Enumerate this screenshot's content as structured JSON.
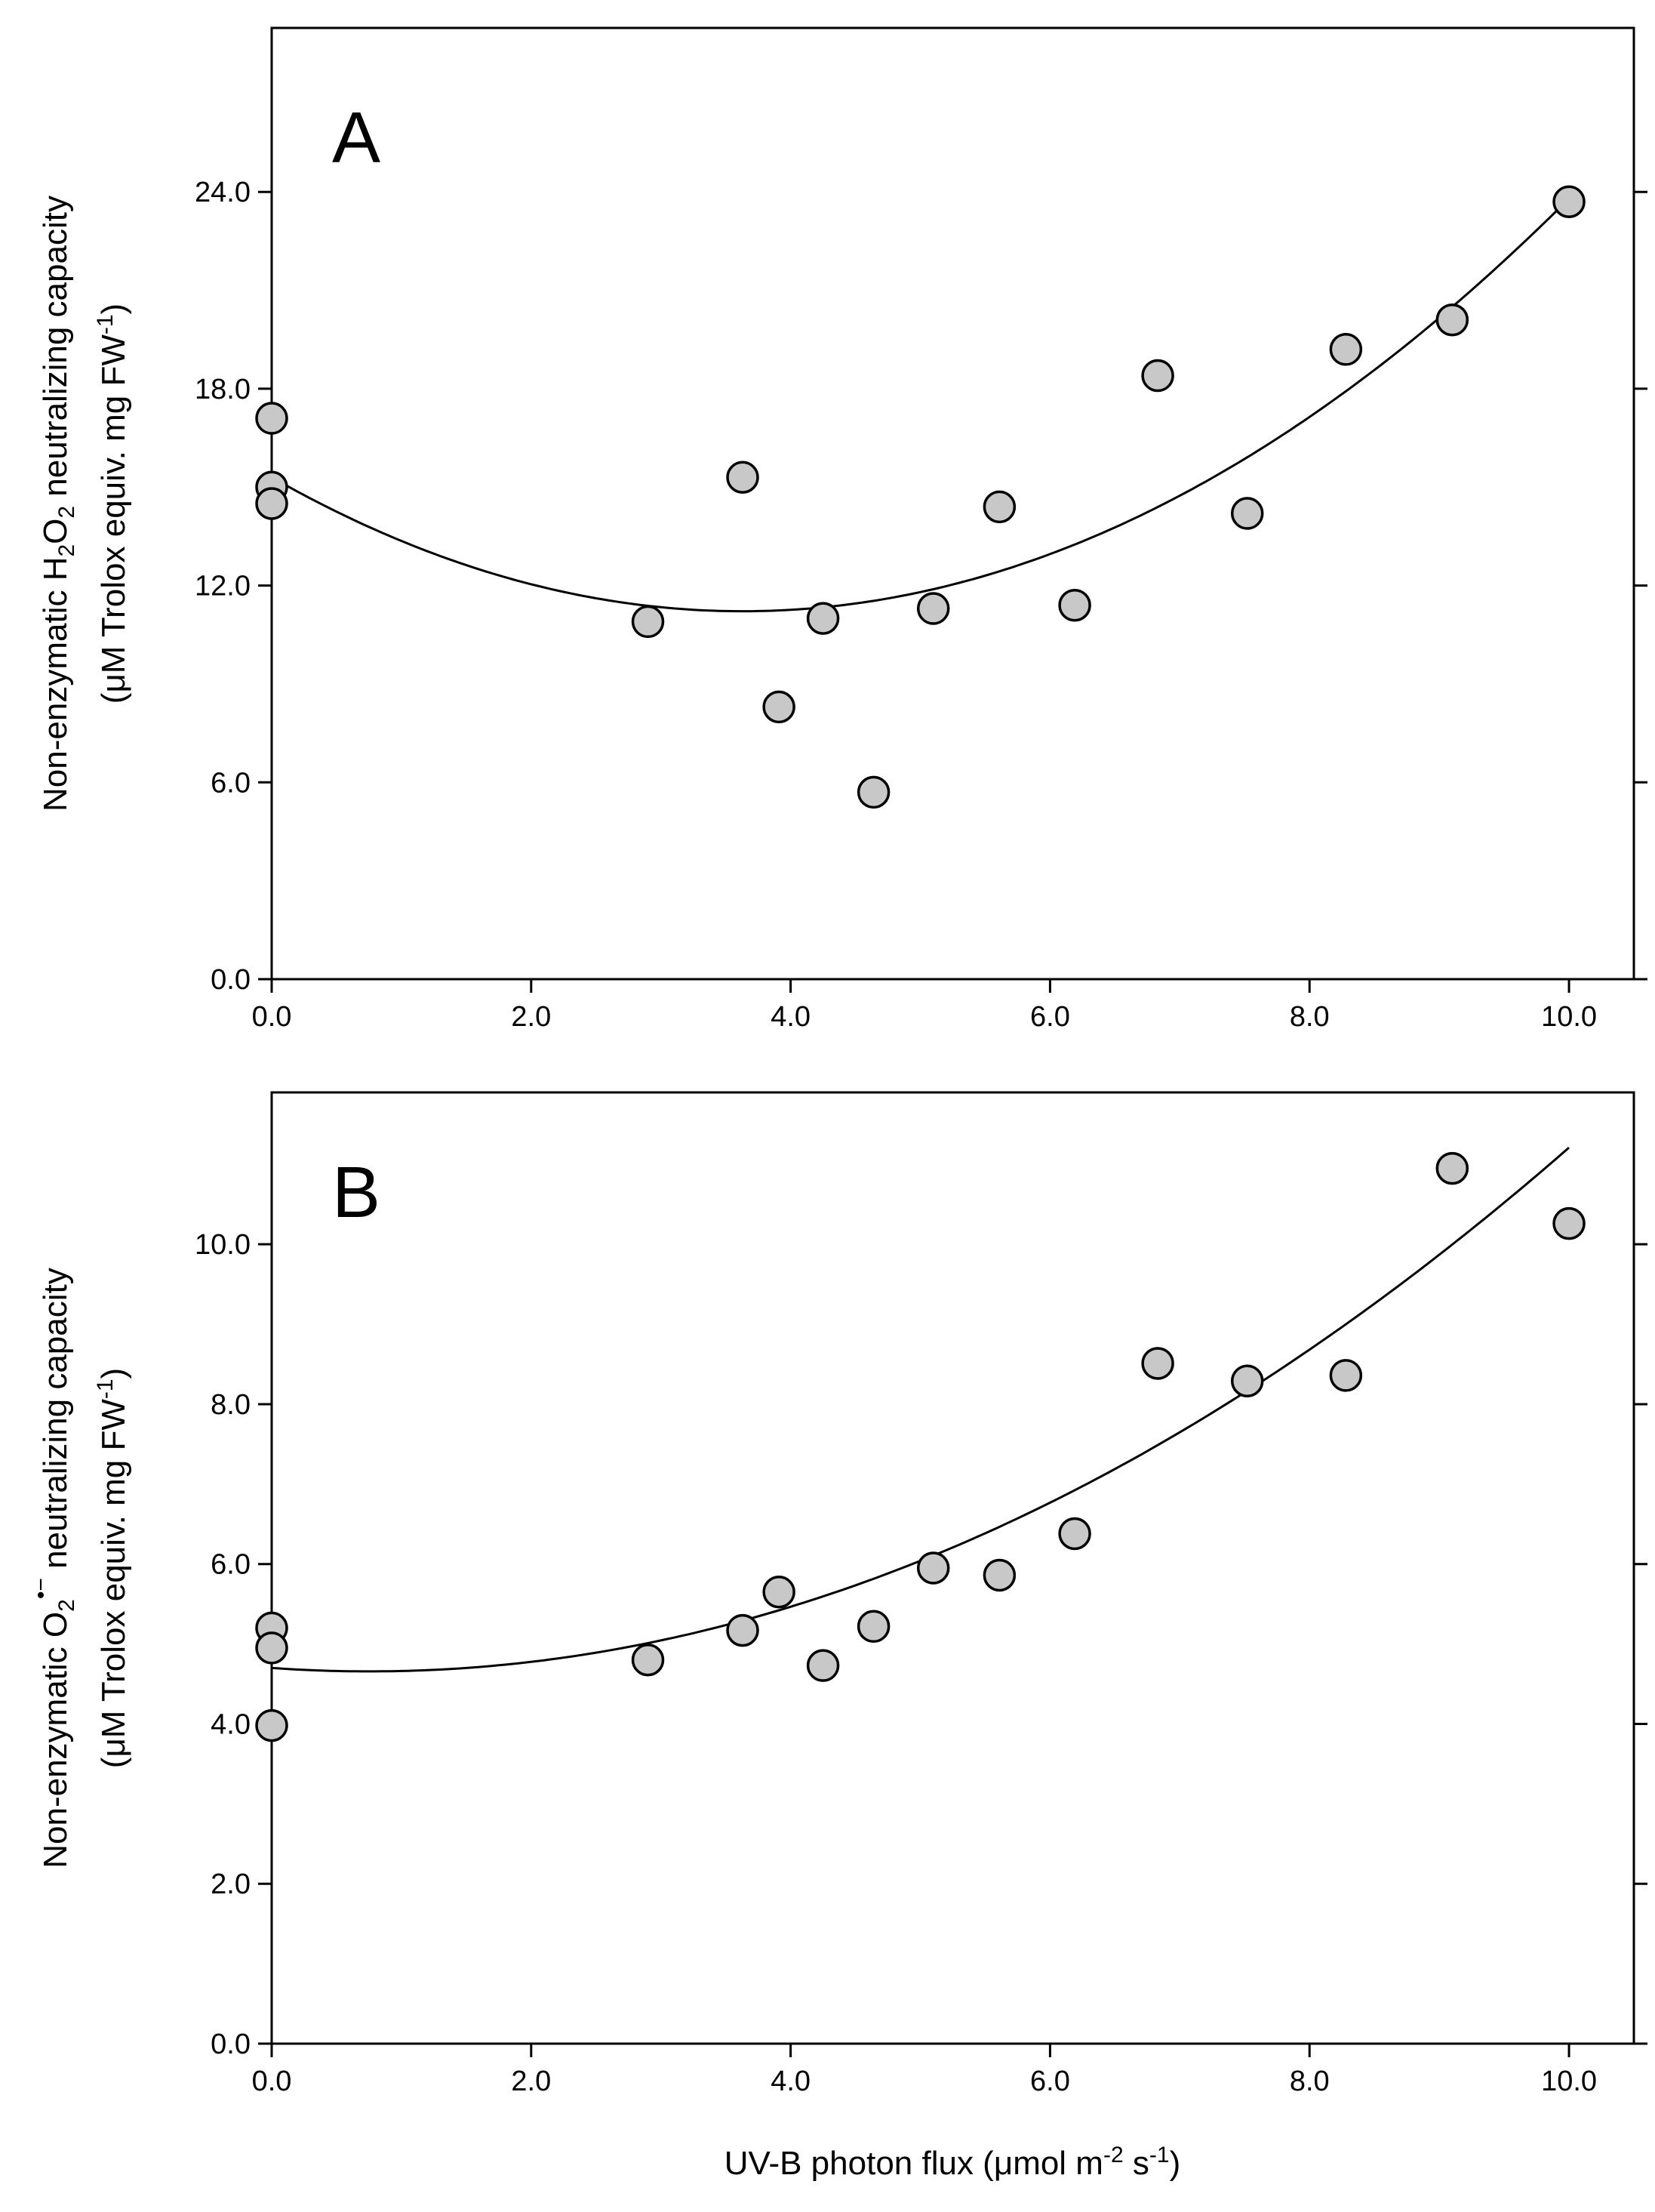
{
  "figure": {
    "x_label": {
      "text": "UV-B photon flux (μmol m",
      "sup1": "-2",
      "mid": " s",
      "sup2": "-1",
      "end": ")"
    }
  },
  "chart_data": [
    {
      "type": "scatter",
      "panel": "A",
      "x_ticks": [
        "0.0",
        "2.0",
        "4.0",
        "6.0",
        "8.0",
        "10.0"
      ],
      "y_ticks": [
        "0.0",
        "6.0",
        "12.0",
        "18.0",
        "24.0"
      ],
      "xlim": [
        0.0,
        10.5
      ],
      "ylim": [
        0.0,
        29.0
      ],
      "ylabel": {
        "line1_a": "Non-enzymatic H",
        "line1_sub1": "2",
        "line1_b": "O",
        "line1_sub2": "2",
        "line1_c": " neutralizing capacity",
        "line2_a": "(μM Trolox equiv. mg FW",
        "line2_sup": "-1",
        "line2_b": ")"
      },
      "points": [
        {
          "x": 0.0,
          "y": 17.1
        },
        {
          "x": 0.0,
          "y": 15.0
        },
        {
          "x": 0.0,
          "y": 14.5
        },
        {
          "x": 2.9,
          "y": 10.9
        },
        {
          "x": 3.63,
          "y": 15.3
        },
        {
          "x": 3.91,
          "y": 8.3
        },
        {
          "x": 4.25,
          "y": 11.0
        },
        {
          "x": 4.64,
          "y": 5.7
        },
        {
          "x": 5.1,
          "y": 11.3
        },
        {
          "x": 5.61,
          "y": 14.4
        },
        {
          "x": 6.19,
          "y": 11.4
        },
        {
          "x": 6.83,
          "y": 18.4
        },
        {
          "x": 7.52,
          "y": 14.2
        },
        {
          "x": 8.28,
          "y": 19.2
        },
        {
          "x": 9.1,
          "y": 20.1
        },
        {
          "x": 10.0,
          "y": 23.7
        }
      ],
      "fit": {
        "type": "quadratic",
        "coefficients": [
          15.3,
          -2.25,
          0.31
        ],
        "x_range": [
          0.0,
          10.0
        ]
      }
    },
    {
      "type": "scatter",
      "panel": "B",
      "x_ticks": [
        "0.0",
        "2.0",
        "4.0",
        "6.0",
        "8.0",
        "10.0"
      ],
      "y_ticks": [
        "0.0",
        "2.0",
        "4.0",
        "6.0",
        "8.0",
        "10.0"
      ],
      "xlim": [
        0.0,
        10.5
      ],
      "ylim": [
        0.0,
        11.9
      ],
      "ylabel": {
        "line1_a": "Non-enzymatic O",
        "line1_sub1": "2",
        "line1_sup1": "•−",
        "line1_c": " neutralizing capacity",
        "line2_a": "(μM Trolox equiv. mg FW",
        "line2_sup": "-1",
        "line2_b": ")"
      },
      "points": [
        {
          "x": 0.0,
          "y": 5.2
        },
        {
          "x": 0.0,
          "y": 4.95
        },
        {
          "x": 0.0,
          "y": 3.98
        },
        {
          "x": 2.9,
          "y": 4.8
        },
        {
          "x": 3.63,
          "y": 5.17
        },
        {
          "x": 3.91,
          "y": 5.65
        },
        {
          "x": 4.25,
          "y": 4.73
        },
        {
          "x": 4.64,
          "y": 5.22
        },
        {
          "x": 5.1,
          "y": 5.95
        },
        {
          "x": 5.61,
          "y": 5.86
        },
        {
          "x": 6.19,
          "y": 6.38
        },
        {
          "x": 6.83,
          "y": 8.51
        },
        {
          "x": 7.52,
          "y": 8.29
        },
        {
          "x": 8.28,
          "y": 8.36
        },
        {
          "x": 9.1,
          "y": 10.95
        },
        {
          "x": 10.0,
          "y": 10.26
        }
      ],
      "fit": {
        "type": "quadratic",
        "coefficients": [
          4.7,
          -0.115,
          0.0766
        ],
        "x_range": [
          0.0,
          10.0
        ]
      }
    }
  ]
}
